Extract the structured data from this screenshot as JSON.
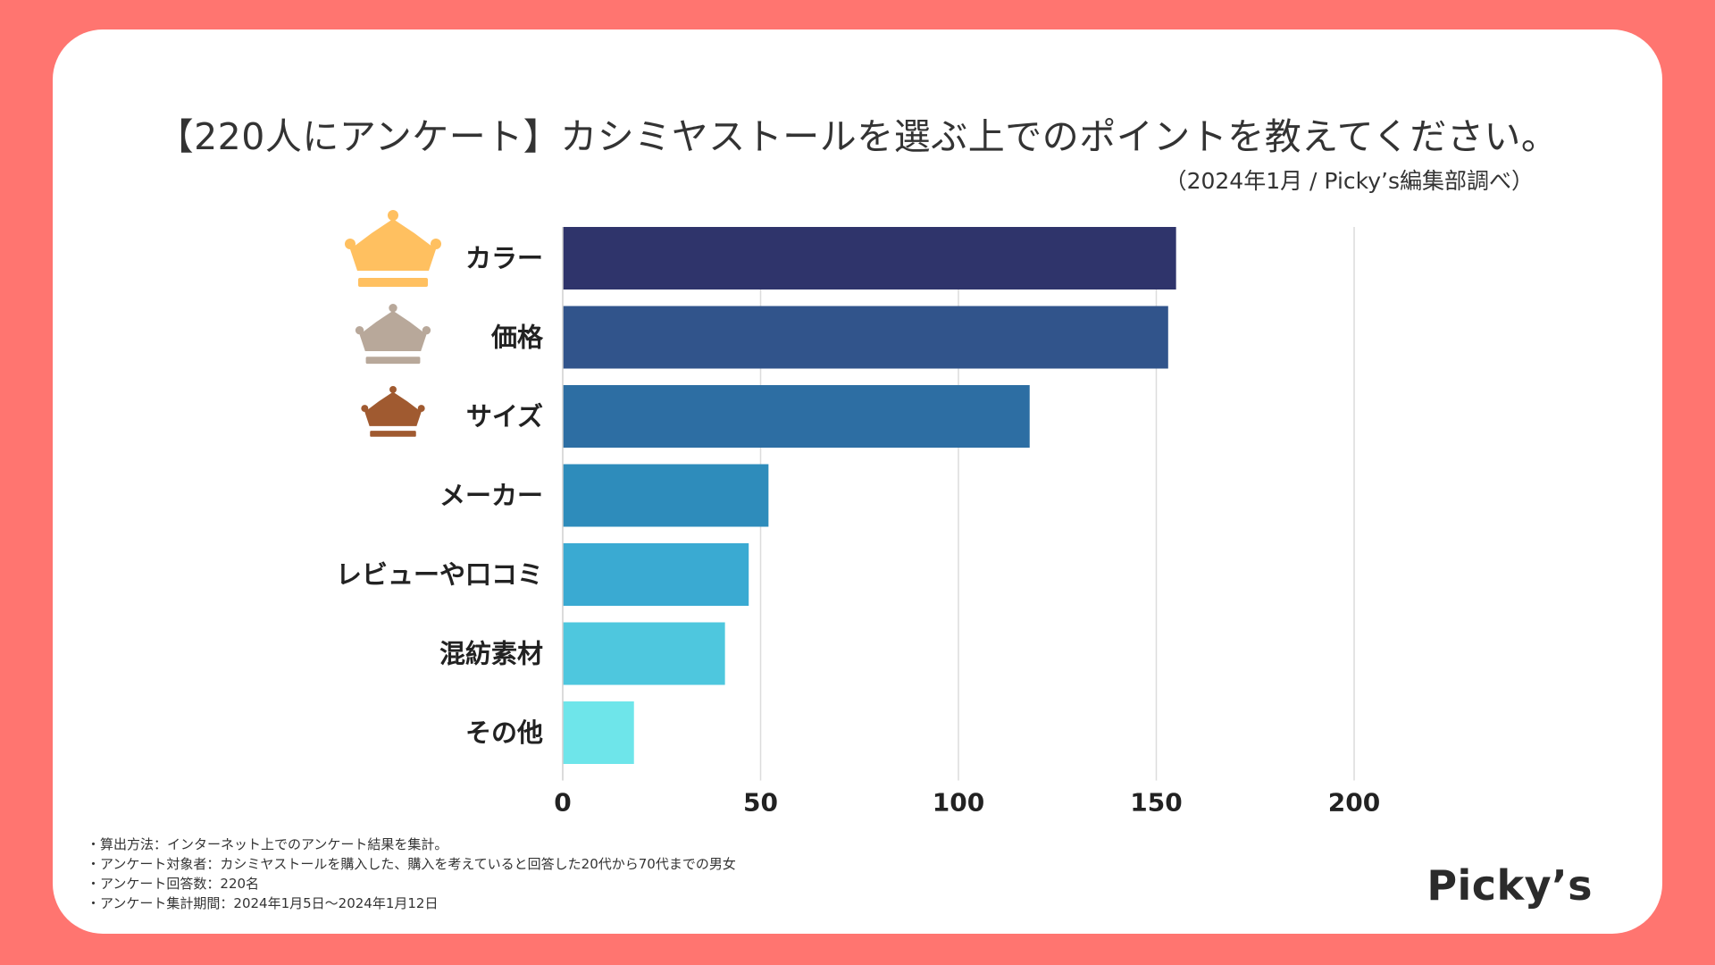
{
  "header": {
    "title": "【220人にアンケート】カシミヤストールを選ぶ上でのポイントを教えてください。",
    "subtitle": "（2024年1月 / Picky’s編集部調べ）"
  },
  "chart_data": {
    "type": "bar",
    "orientation": "horizontal",
    "title": "【220人にアンケート】カシミヤストールを選ぶ上でのポイントを教えてください。",
    "xlabel": "",
    "ylabel": "",
    "xlim": [
      0,
      200
    ],
    "xticks": [
      0,
      50,
      100,
      150,
      200
    ],
    "grid": true,
    "categories": [
      "カラー",
      "価格",
      "サイズ",
      "メーカー",
      "レビューや口コミ",
      "混紡素材",
      "その他"
    ],
    "values": [
      155,
      153,
      118,
      52,
      47,
      41,
      18
    ],
    "bar_colors": [
      "#2f346b",
      "#31548b",
      "#2d6ea3",
      "#2e8cbb",
      "#3aaad2",
      "#4ec7de",
      "#6ee5ea"
    ],
    "rank_icons": [
      {
        "rank": 1,
        "icon": "gold-crown-icon",
        "color": "#ffc060"
      },
      {
        "rank": 2,
        "icon": "silver-crown-icon",
        "color": "#b8a89a"
      },
      {
        "rank": 3,
        "icon": "bronze-crown-icon",
        "color": "#a05a30"
      }
    ]
  },
  "notes": [
    "・算出方法：インターネット上でのアンケート結果を集計。",
    "・アンケート対象者：カシミヤストールを購入した、購入を考えていると回答した20代から70代までの男女",
    "・アンケート回答数：220名",
    "・アンケート集計期間：2024年1月5日〜2024年1月12日"
  ],
  "brand": {
    "logo_text": "Picky’s"
  }
}
